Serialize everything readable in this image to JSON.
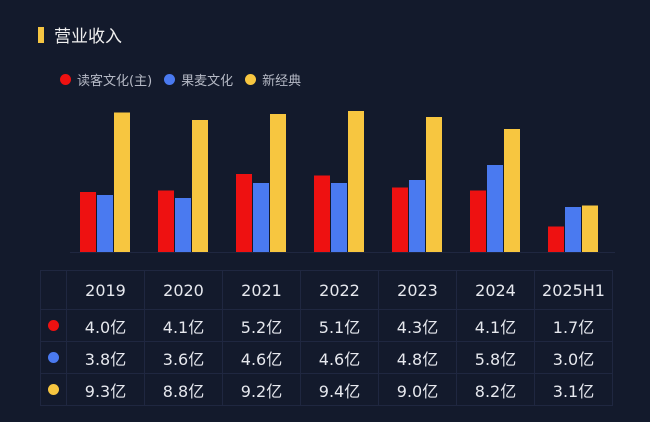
{
  "title": "营业收入",
  "chart_data": {
    "type": "bar",
    "categories": [
      "2019",
      "2020",
      "2021",
      "2022",
      "2023",
      "2024",
      "2025H1"
    ],
    "series": [
      {
        "name": "读客文化(主)",
        "color": "#ee1111",
        "values": [
          4.0,
          4.1,
          5.2,
          5.1,
          4.3,
          4.1,
          1.7
        ],
        "labels": [
          "4.0亿",
          "4.1亿",
          "5.2亿",
          "5.1亿",
          "4.3亿",
          "4.1亿",
          "1.7亿"
        ]
      },
      {
        "name": "果麦文化",
        "color": "#4a7af0",
        "values": [
          3.8,
          3.6,
          4.6,
          4.6,
          4.8,
          5.8,
          3.0
        ],
        "labels": [
          "3.8亿",
          "3.6亿",
          "4.6亿",
          "4.6亿",
          "4.8亿",
          "5.8亿",
          "3.0亿"
        ]
      },
      {
        "name": "新经典",
        "color": "#f7c640",
        "values": [
          9.3,
          8.8,
          9.2,
          9.4,
          9.0,
          8.2,
          3.1
        ],
        "labels": [
          "9.3亿",
          "8.8亿",
          "9.2亿",
          "9.4亿",
          "9.0亿",
          "8.2亿",
          "3.1亿"
        ]
      }
    ],
    "unit": "亿",
    "legend": "top-left",
    "grid": false
  }
}
